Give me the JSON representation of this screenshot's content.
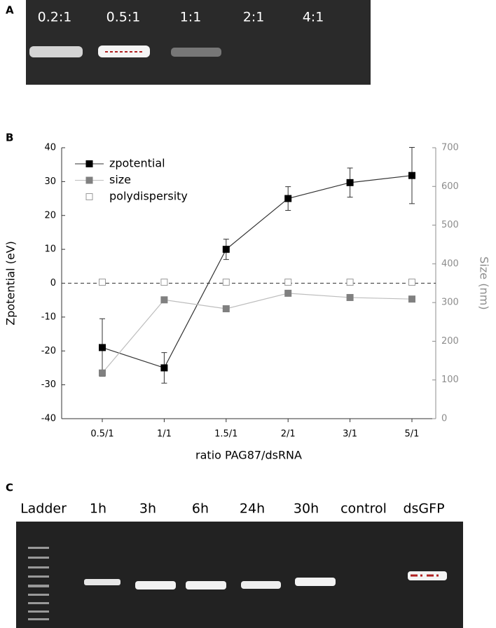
{
  "panels": {
    "a": "A",
    "b": "B",
    "c": "C"
  },
  "gel_a": {
    "lanes": [
      "0.2:1",
      "0.5:1",
      "1:1",
      "2:1",
      "4:1"
    ]
  },
  "gel_c": {
    "lanes": [
      "Ladder",
      "1h",
      "3h",
      "6h",
      "24h",
      "30h",
      "control",
      "dsGFP"
    ]
  },
  "chart_data": {
    "type": "line",
    "x_label": "ratio PAG87/dsRNA",
    "y_label": "Zpotential (eV)",
    "y2_label": "Size (nm)",
    "categories": [
      "0.5/1",
      "1/1",
      "1.5/1",
      "2/1",
      "3/1",
      "5/1"
    ],
    "ylim": [
      -40,
      40
    ],
    "yticks": [
      -40,
      -30,
      -20,
      -10,
      0,
      10,
      20,
      30,
      40
    ],
    "y2lim": [
      0,
      700
    ],
    "y2ticks": [
      0,
      100,
      200,
      300,
      400,
      500,
      600,
      700
    ],
    "y2_color": "#8c8c8c",
    "reference_line": 0,
    "legend": "upper left",
    "series": [
      {
        "name": "zpotential",
        "color": "#000000",
        "line_color": "#333333",
        "marker": "filled",
        "axis": "y",
        "values": [
          -19,
          -25,
          10,
          25,
          29.7,
          31.8
        ],
        "errors": [
          8.5,
          4.5,
          3,
          3.5,
          4.3,
          8.3
        ]
      },
      {
        "name": "size",
        "color": "#808080",
        "line_color": "#bdbdbd",
        "marker": "filled",
        "axis": "y2",
        "values": [
          118,
          307,
          284,
          324,
          313,
          309
        ]
      },
      {
        "name": "polydispersity",
        "color": "#9a9a9a",
        "marker": "open",
        "axis": "y",
        "values": [
          0.3,
          0.3,
          0.3,
          0.3,
          0.3,
          0.3
        ]
      }
    ]
  }
}
